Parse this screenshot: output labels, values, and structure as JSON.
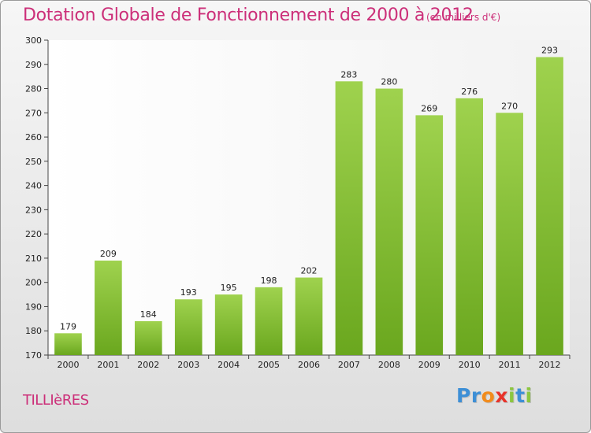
{
  "chart_data": {
    "type": "bar",
    "title": "Dotation Globale de Fonctionnement de 2000 à 2012",
    "subtitle": "(en milliers d'€)",
    "categories": [
      "2000",
      "2001",
      "2002",
      "2003",
      "2004",
      "2005",
      "2006",
      "2007",
      "2008",
      "2009",
      "2010",
      "2011",
      "2012"
    ],
    "values": [
      179,
      209,
      184,
      193,
      195,
      198,
      202,
      283,
      280,
      269,
      276,
      270,
      293
    ],
    "xlabel": "",
    "ylabel": "",
    "ylim": [
      170,
      300
    ],
    "yticks": [
      170,
      180,
      190,
      200,
      210,
      220,
      230,
      240,
      250,
      260,
      270,
      280,
      290,
      300
    ],
    "grid": false,
    "bar_color": "#8cc63f"
  },
  "footer": {
    "place": "TILLIèRES",
    "logo_letters": [
      "P",
      "r",
      "o",
      "x",
      "i",
      "t",
      "i"
    ],
    "logo_colors": [
      "#3d8fd6",
      "#3d8fd6",
      "#f28c1c",
      "#e8332a",
      "#8cc63f",
      "#3d8fd6",
      "#8cc63f"
    ]
  }
}
